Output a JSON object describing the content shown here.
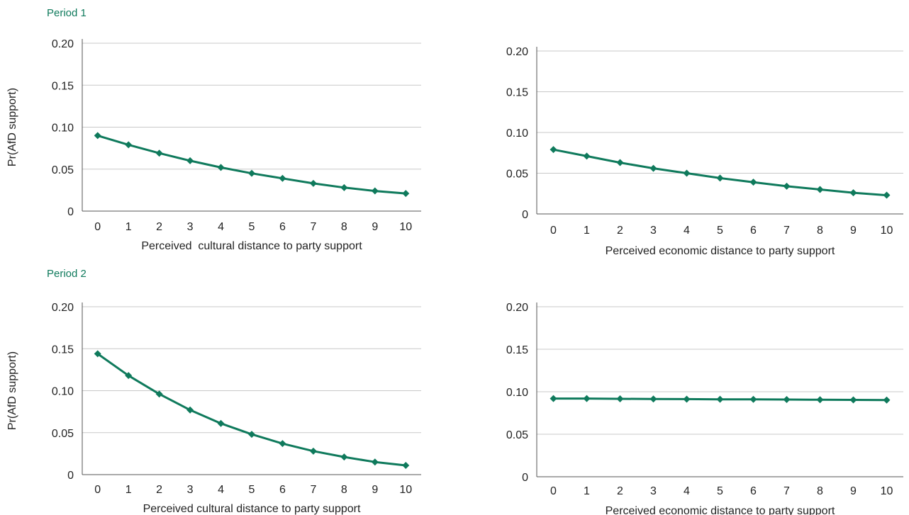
{
  "periods": [
    {
      "label": "Period 1"
    },
    {
      "label": "Period 2"
    }
  ],
  "colors": {
    "series": "#0f7a5c",
    "grid": "#c8c8c8",
    "text": "#222222",
    "period_label": "#0f7a5c"
  },
  "chart_data": [
    {
      "type": "line",
      "panel": "period-1-cultural",
      "title": "",
      "xlabel": "Perceived  cultural distance to party support",
      "ylabel": "Pr(AfD support)",
      "x": [
        0,
        1,
        2,
        3,
        4,
        5,
        6,
        7,
        8,
        9,
        10
      ],
      "y": [
        0.09,
        0.079,
        0.069,
        0.06,
        0.052,
        0.045,
        0.039,
        0.033,
        0.028,
        0.024,
        0.021
      ],
      "ylim": [
        0,
        0.2
      ],
      "yticks": [
        "0",
        "0.05",
        "0.10",
        "0.15",
        "0.20"
      ],
      "grid": true
    },
    {
      "type": "line",
      "panel": "period-1-economic",
      "title": "",
      "xlabel": "Perceived economic distance to party support",
      "ylabel": "",
      "x": [
        0,
        1,
        2,
        3,
        4,
        5,
        6,
        7,
        8,
        9,
        10
      ],
      "y": [
        0.079,
        0.071,
        0.063,
        0.056,
        0.05,
        0.044,
        0.039,
        0.034,
        0.03,
        0.026,
        0.023
      ],
      "ylim": [
        0,
        0.2
      ],
      "yticks": [
        "0",
        "0.05",
        "0.10",
        "0.15",
        "0.20"
      ],
      "grid": true
    },
    {
      "type": "line",
      "panel": "period-2-cultural",
      "title": "",
      "xlabel": "Perceived cultural distance to party support",
      "ylabel": "Pr(AfD support)",
      "x": [
        0,
        1,
        2,
        3,
        4,
        5,
        6,
        7,
        8,
        9,
        10
      ],
      "y": [
        0.144,
        0.118,
        0.096,
        0.077,
        0.061,
        0.048,
        0.037,
        0.028,
        0.021,
        0.015,
        0.011
      ],
      "ylim": [
        0,
        0.2
      ],
      "yticks": [
        "0",
        "0.05",
        "0.10",
        "0.15",
        "0.20"
      ],
      "grid": true
    },
    {
      "type": "line",
      "panel": "period-2-economic",
      "title": "",
      "xlabel": "Perceived economic distance to party support",
      "ylabel": "",
      "x": [
        0,
        1,
        2,
        3,
        4,
        5,
        6,
        7,
        8,
        9,
        10
      ],
      "y": [
        0.092,
        0.092,
        0.0917,
        0.0915,
        0.0913,
        0.0911,
        0.091,
        0.0908,
        0.0906,
        0.0904,
        0.0902
      ],
      "ylim": [
        0,
        0.2
      ],
      "yticks": [
        "0",
        "0.05",
        "0.10",
        "0.15",
        "0.20"
      ],
      "grid": true
    }
  ]
}
